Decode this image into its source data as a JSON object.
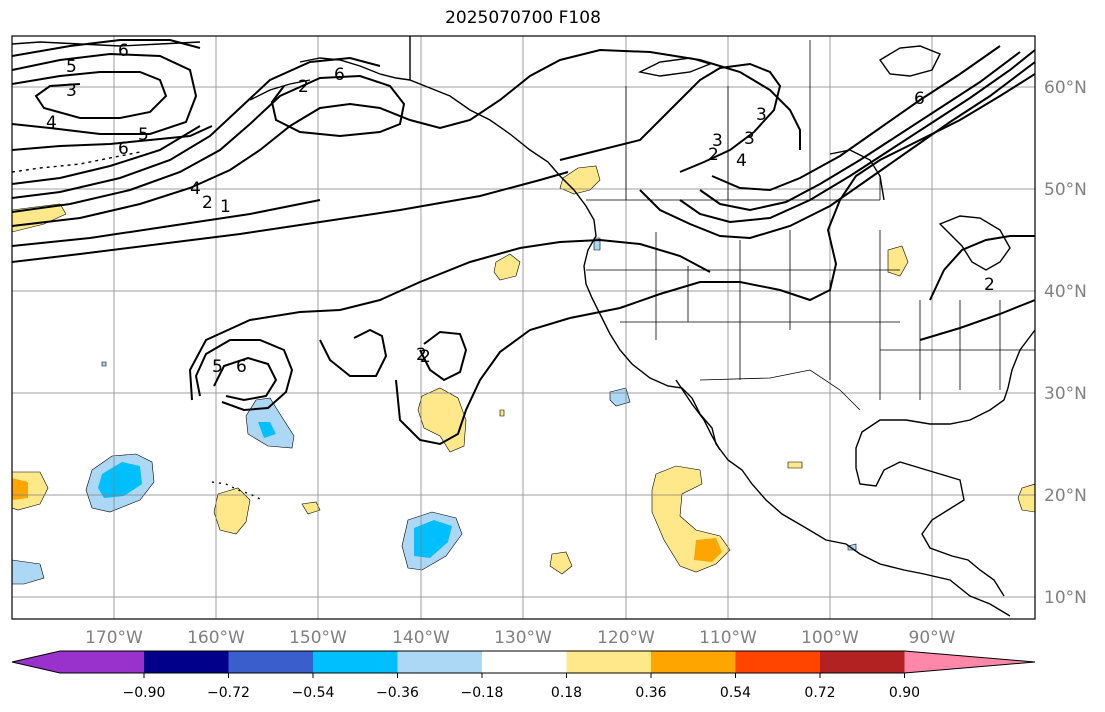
{
  "title": "2025070700 F108",
  "longitude_labels": [
    "170°W",
    "160°W",
    "150°W",
    "140°W",
    "130°W",
    "120°W",
    "110°W",
    "100°W",
    "90°W"
  ],
  "latitude_labels": [
    "60°N",
    "50°N",
    "40°N",
    "30°N",
    "20°N",
    "10°N"
  ],
  "colorbar": {
    "labels": [
      "−0.90",
      "−0.72",
      "−0.54",
      "−0.36",
      "−0.18",
      "0.18",
      "0.36",
      "0.54",
      "0.72",
      "0.90"
    ],
    "colors": [
      "#9932cc",
      "#00008b",
      "#3a5fcd",
      "#00bfff",
      "#add8f5",
      "#ffffff",
      "#fee88a",
      "#ffa500",
      "#ff4500",
      "#b22222",
      "#ff88aa"
    ]
  },
  "contour_labels": [
    "6",
    "5",
    "3",
    "4",
    "5",
    "6",
    "4",
    "2",
    "1",
    "6",
    "2",
    "3",
    "2",
    "3",
    "4",
    "6",
    "5",
    "6",
    "2",
    "2",
    "3",
    "2"
  ],
  "colors": {
    "land_outline": "#000000",
    "grid": "#808080",
    "positive_light": "#fee88a",
    "positive_mid": "#ffa500",
    "negative_light": "#add8f5",
    "negative_mid": "#00bfff"
  }
}
